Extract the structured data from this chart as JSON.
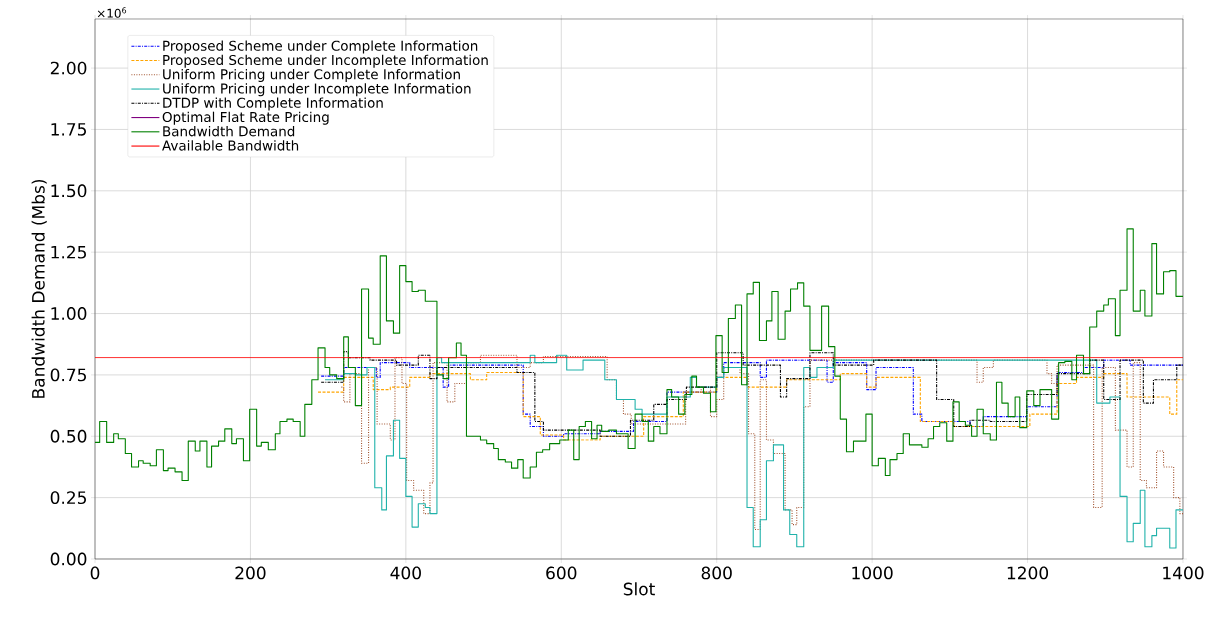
{
  "chart_data": {
    "type": "step",
    "xlabel": "Slot",
    "ylabel": "Bandwidth Demand (Mbs)",
    "annotations": [
      "×10$^{6}$"
    ],
    "xlim": [
      0,
      1400
    ],
    "ylim": [
      0,
      2.2
    ],
    "xticks": [
      0,
      200,
      400,
      600,
      800,
      1000,
      1200,
      1400
    ],
    "yticks": [
      {
        "value": 0,
        "label": "0.00"
      },
      {
        "value": 0.25,
        "label": "0.25"
      },
      {
        "value": 0.5,
        "label": "0.50"
      },
      {
        "value": 0.75,
        "label": "0.75"
      },
      {
        "value": 1,
        "label": "1.00"
      },
      {
        "value": 1.25,
        "label": "1.25"
      },
      {
        "value": 1.5,
        "label": "1.50"
      },
      {
        "value": 1.75,
        "label": "1.75"
      },
      {
        "value": 2,
        "label": "2.00"
      }
    ],
    "grid": true,
    "legend": "top left",
    "series": [
      {
        "name": "Proposed Scheme under Complete Information",
        "color": "#0000ff",
        "line_style": "dashdot",
        "x": [
          291,
          320,
          362,
          367,
          405,
          448,
          455,
          551,
          560,
          577,
          603,
          650,
          693,
          736,
          800,
          809,
          856,
          864,
          942,
          950,
          993,
          1005,
          1053,
          1064,
          1126,
          1143,
          1199,
          1238,
          1272,
          1298,
          1332,
          1400
        ],
        "values": [
          0.745,
          0.78,
          0.74,
          0.8,
          0.78,
          0.7,
          0.79,
          0.59,
          0.54,
          0.5,
          0.51,
          0.52,
          0.56,
          0.68,
          0.74,
          0.8,
          0.74,
          0.81,
          0.72,
          0.8,
          0.69,
          0.78,
          0.59,
          0.56,
          0.54,
          0.58,
          0.62,
          0.76,
          0.78,
          0.81,
          0.79,
          0.79
        ]
      },
      {
        "name": "Proposed Scheme under Incomplete Information",
        "color": "#ffa500",
        "line_style": "dashed",
        "x": [
          287,
          320,
          358,
          380,
          405,
          431,
          483,
          504,
          551,
          573,
          603,
          650,
          706,
          757,
          800,
          839,
          890,
          959,
          993,
          1005,
          1062,
          1105,
          1203,
          1238,
          1263,
          1298,
          1328,
          1383,
          1392,
          1400
        ],
        "values": [
          0.68,
          0.74,
          0.69,
          0.7,
          0.74,
          0.755,
          0.73,
          0.76,
          0.58,
          0.505,
          0.485,
          0.5,
          0.58,
          0.68,
          0.74,
          0.7,
          0.73,
          0.755,
          0.7,
          0.74,
          0.56,
          0.54,
          0.59,
          0.715,
          0.74,
          0.755,
          0.66,
          0.59,
          0.73,
          0.73
        ]
      },
      {
        "name": "Uniform Pricing under Complete Information",
        "color": "#a0522d",
        "line_style": "dotted",
        "x": [
          317,
          320,
          328,
          343,
          352,
          363,
          380,
          386,
          395,
          401,
          410,
          423,
          431,
          435,
          453,
          463,
          478,
          496,
          543,
          560,
          577,
          659,
          671,
          680,
          690,
          720,
          760,
          780,
          792,
          800,
          809,
          830,
          841,
          849,
          856,
          864,
          873,
          888,
          897,
          903,
          912,
          920,
          1135,
          1143,
          1156,
          1225,
          1231,
          1238,
          1285,
          1296,
          1313,
          1328,
          1336,
          1345,
          1353,
          1366,
          1375,
          1388,
          1396,
          1400
        ],
        "values": [
          0.7,
          0.64,
          0.755,
          0.39,
          0.78,
          0.55,
          0.485,
          0.82,
          0.715,
          0.32,
          0.28,
          0.185,
          0.31,
          0.8,
          0.64,
          0.715,
          0.8,
          0.83,
          0.78,
          0.8,
          0.825,
          0.73,
          0.65,
          0.59,
          0.55,
          0.55,
          0.68,
          0.7,
          0.58,
          0.65,
          0.78,
          0.755,
          0.51,
          0.12,
          0.73,
          0.485,
          0.43,
          0.2,
          0.14,
          0.21,
          0.62,
          0.81,
          0.72,
          0.78,
          0.81,
          0.755,
          0.715,
          0.79,
          0.21,
          0.78,
          0.525,
          0.375,
          0.8,
          0.32,
          0.29,
          0.44,
          0.375,
          0.25,
          0.185,
          0.185
        ]
      },
      {
        "name": "Uniform Pricing under Incomplete Information",
        "color": "#20b2aa",
        "line_style": "solid",
        "x": [
          296,
          320,
          335,
          350,
          360,
          369,
          375,
          384,
          392,
          400,
          408,
          416,
          425,
          431,
          440,
          446,
          560,
          566,
          594,
          607,
          628,
          656,
          671,
          695,
          704,
          736,
          766,
          774,
          800,
          809,
          839,
          847,
          856,
          864,
          873,
          886,
          894,
          903,
          912,
          920,
          929,
          950,
          1289,
          1306,
          1319,
          1328,
          1336,
          1345,
          1351,
          1360,
          1366,
          1383,
          1391,
          1400
        ],
        "values": [
          0.73,
          0.755,
          0.75,
          0.78,
          0.29,
          0.2,
          0.42,
          0.565,
          0.41,
          0.255,
          0.13,
          0.225,
          0.21,
          0.185,
          0.82,
          0.8,
          0.83,
          0.8,
          0.83,
          0.77,
          0.81,
          0.73,
          0.65,
          0.61,
          0.59,
          0.66,
          0.74,
          0.7,
          0.74,
          0.78,
          0.21,
          0.05,
          0.16,
          0.4,
          0.465,
          0.2,
          0.1,
          0.05,
          0.78,
          0.74,
          0.78,
          0.81,
          0.635,
          0.66,
          0.255,
          0.07,
          0.145,
          0.28,
          0.05,
          0.095,
          0.125,
          0.045,
          0.2,
          0.2
        ]
      },
      {
        "name": "DTDP with Complete Information",
        "color": "#000000",
        "line_style": "dashdot",
        "x": [
          291,
          320,
          326,
          354,
          388,
          416,
          431,
          440,
          543,
          566,
          577,
          650,
          689,
          719,
          736,
          761,
          800,
          834,
          882,
          890,
          920,
          950,
          1002,
          1083,
          1105,
          1126,
          1152,
          1199,
          1238,
          1280,
          1298,
          1319,
          1349,
          1362,
          1392,
          1400
        ],
        "values": [
          0.72,
          0.845,
          0.82,
          0.81,
          0.79,
          0.83,
          0.735,
          0.78,
          0.76,
          0.56,
          0.525,
          0.5,
          0.565,
          0.63,
          0.65,
          0.7,
          0.84,
          0.79,
          0.66,
          0.735,
          0.84,
          0.79,
          0.81,
          0.65,
          0.54,
          0.565,
          0.56,
          0.67,
          0.755,
          0.81,
          0.65,
          0.81,
          0.635,
          0.73,
          0.79,
          0.79
        ]
      },
      {
        "name": "Optimal Flat Rate Pricing",
        "color": "#800080",
        "line_style": "solid"
      },
      {
        "name": "Bandwidth Demand",
        "color": "#008000",
        "line_style": "solid",
        "x": [
          0,
          6,
          15,
          24,
          30,
          39,
          47,
          56,
          62,
          71,
          79,
          88,
          94,
          103,
          112,
          120,
          129,
          135,
          144,
          150,
          159,
          167,
          176,
          182,
          191,
          199,
          208,
          214,
          223,
          232,
          238,
          247,
          255,
          264,
          270,
          279,
          287,
          296,
          302,
          311,
          320,
          326,
          335,
          343,
          352,
          358,
          367,
          375,
          384,
          392,
          400,
          408,
          416,
          425,
          440,
          448,
          455,
          465,
          471,
          478,
          496,
          504,
          513,
          519,
          528,
          536,
          544,
          551,
          560,
          568,
          576,
          585,
          592,
          598,
          609,
          616,
          623,
          631,
          639,
          646,
          652,
          661,
          671,
          678,
          686,
          695,
          704,
          712,
          719,
          727,
          736,
          742,
          751,
          759,
          768,
          774,
          783,
          792,
          799,
          807,
          815,
          824,
          832,
          839,
          847,
          855,
          864,
          871,
          879,
          888,
          895,
          904,
          912,
          920,
          935,
          944,
          952,
          959,
          967,
          976,
          984,
          992,
          1000,
          1008,
          1017,
          1023,
          1032,
          1040,
          1048,
          1064,
          1072,
          1079,
          1087,
          1096,
          1104,
          1112,
          1120,
          1128,
          1135,
          1143,
          1152,
          1160,
          1167,
          1175,
          1184,
          1190,
          1199,
          1208,
          1216,
          1224,
          1231,
          1240,
          1248,
          1257,
          1263,
          1272,
          1280,
          1289,
          1298,
          1304,
          1313,
          1319,
          1328,
          1336,
          1345,
          1351,
          1360,
          1366,
          1375,
          1383,
          1391,
          1400
        ],
        "values": [
          0.475,
          0.56,
          0.475,
          0.51,
          0.49,
          0.43,
          0.375,
          0.4,
          0.39,
          0.38,
          0.445,
          0.36,
          0.37,
          0.355,
          0.32,
          0.48,
          0.44,
          0.48,
          0.375,
          0.46,
          0.48,
          0.53,
          0.47,
          0.49,
          0.4,
          0.61,
          0.46,
          0.475,
          0.445,
          0.51,
          0.56,
          0.57,
          0.56,
          0.5,
          0.63,
          0.73,
          0.86,
          0.78,
          0.75,
          0.735,
          0.905,
          0.78,
          0.625,
          1.1,
          0.9,
          0.875,
          1.235,
          0.97,
          0.92,
          1.195,
          1.13,
          1.09,
          1.095,
          1.05,
          0.75,
          0.735,
          0.82,
          0.88,
          0.83,
          0.5,
          0.485,
          0.47,
          0.45,
          0.405,
          0.395,
          0.37,
          0.405,
          0.33,
          0.375,
          0.435,
          0.445,
          0.47,
          0.47,
          0.485,
          0.525,
          0.405,
          0.54,
          0.56,
          0.49,
          0.545,
          0.52,
          0.525,
          0.51,
          0.51,
          0.45,
          0.59,
          0.56,
          0.48,
          0.54,
          0.51,
          0.69,
          0.66,
          0.59,
          0.67,
          0.745,
          0.7,
          0.675,
          0.6,
          0.91,
          0.76,
          0.98,
          1.035,
          0.71,
          1.08,
          1.127,
          0.89,
          0.97,
          1.09,
          0.895,
          1.01,
          1.1,
          1.125,
          1.03,
          0.85,
          1.03,
          0.865,
          0.745,
          0.57,
          0.437,
          0.48,
          0.48,
          0.59,
          0.38,
          0.41,
          0.34,
          0.405,
          0.43,
          0.51,
          0.465,
          0.455,
          0.49,
          0.54,
          0.555,
          0.48,
          0.64,
          0.56,
          0.545,
          0.5,
          0.61,
          0.51,
          0.485,
          0.72,
          0.635,
          0.58,
          0.66,
          0.535,
          0.685,
          0.625,
          0.69,
          0.69,
          0.57,
          0.8,
          0.805,
          0.73,
          0.83,
          0.755,
          0.945,
          1.01,
          1.035,
          1.06,
          0.91,
          1.095,
          1.345,
          1.01,
          1.095,
          0.99,
          1.285,
          1.08,
          1.17,
          1.175,
          1.07,
          1.07
        ]
      },
      {
        "name": "Available Bandwidth",
        "color": "#ff0000",
        "line_style": "solid",
        "x": [
          0,
          1400
        ],
        "values": [
          0.82,
          0.82
        ]
      }
    ]
  }
}
